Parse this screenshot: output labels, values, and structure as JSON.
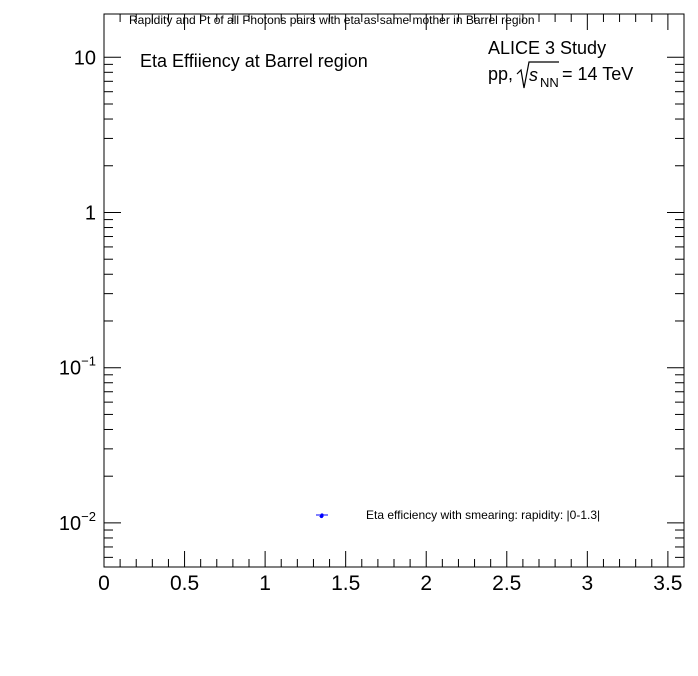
{
  "chart_data": {
    "type": "scatter",
    "title": "Rapidity and Pt of all Photons pairs with eta as same mother in Barrel region",
    "annotations": {
      "left": "Eta Effiiency at Barrel region",
      "experiment": "ALICE 3 Study",
      "system_prefix": "pp,",
      "sqrt_s": "s",
      "sqrt_s_sub": "NN",
      "energy": "= 14 TeV"
    },
    "xlabel": "",
    "ylabel": "",
    "x_scale": "linear",
    "y_scale": "log",
    "xlim": [
      0,
      3.6
    ],
    "ylim": [
      0.0052,
      19
    ],
    "x_ticks": [
      {
        "value": 0,
        "label": "0"
      },
      {
        "value": 0.5,
        "label": "0.5"
      },
      {
        "value": 1,
        "label": "1"
      },
      {
        "value": 1.5,
        "label": "1.5"
      },
      {
        "value": 2,
        "label": "2"
      },
      {
        "value": 2.5,
        "label": "2.5"
      },
      {
        "value": 3,
        "label": "3"
      },
      {
        "value": 3.5,
        "label": "3.5"
      }
    ],
    "y_ticks": [
      {
        "value": 10,
        "base": "10",
        "exp": ""
      },
      {
        "value": 1,
        "base": "1",
        "exp": ""
      },
      {
        "value": 0.1,
        "base": "10",
        "exp": "−1"
      },
      {
        "value": 0.01,
        "base": "10",
        "exp": "−2"
      }
    ],
    "series": [
      {
        "name": "Eta efficiency with smearing: rapidity: |0-1.3|",
        "color": "#0000ff",
        "points": [
          {
            "x": 1.35,
            "y": 0.011
          }
        ]
      }
    ],
    "legend_position": "bottom-right",
    "grid": false
  }
}
